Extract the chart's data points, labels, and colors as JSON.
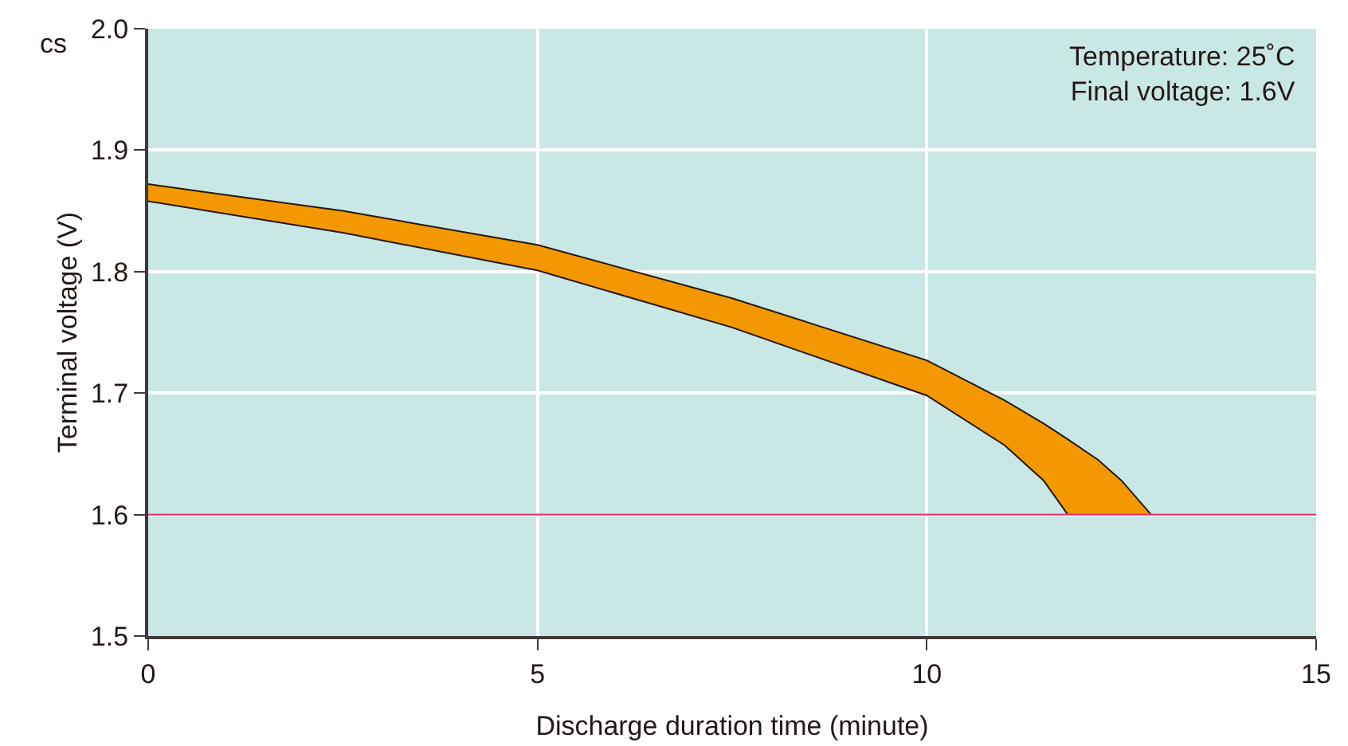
{
  "chart_data": {
    "type": "area",
    "xlabel": "Discharge duration time (minute)",
    "ylabel": "Terminal voltage (V)",
    "annotations": [
      "cs",
      "Temperature: 25˚C\nFinal voltage: 1.6V"
    ],
    "x": [
      0,
      2.5,
      5,
      7.5,
      10,
      11,
      11.5,
      11.81,
      12.2,
      12.5,
      12.88
    ],
    "series": [
      {
        "type": "line",
        "color": "#231815",
        "x": [
          0,
          2.5,
          5,
          7.5,
          10,
          11,
          11.5,
          11.81
        ],
        "values": [
          1.858,
          1.832,
          1.801,
          1.754,
          1.698,
          1.657,
          1.628,
          1.6
        ]
      },
      {
        "color": "#f39800",
        "values": [
          1.872,
          1.85,
          1.822,
          1.778,
          1.727,
          1.694,
          1.675,
          1.662,
          1.645,
          1.628,
          1.6
        ]
      }
    ],
    "xlim": [
      0,
      15
    ],
    "xticks": [
      0,
      5,
      10,
      15
    ],
    "ylim": [
      1.5,
      2.0
    ],
    "yticks": [
      1.5,
      1.6,
      1.7,
      1.8,
      1.9,
      {
        "value": 2,
        "label": "2.0"
      }
    ],
    "ref_lines": [
      {
        "axis": "y",
        "value": 1.6,
        "color": "#e8336f"
      }
    ],
    "grid": true
  }
}
